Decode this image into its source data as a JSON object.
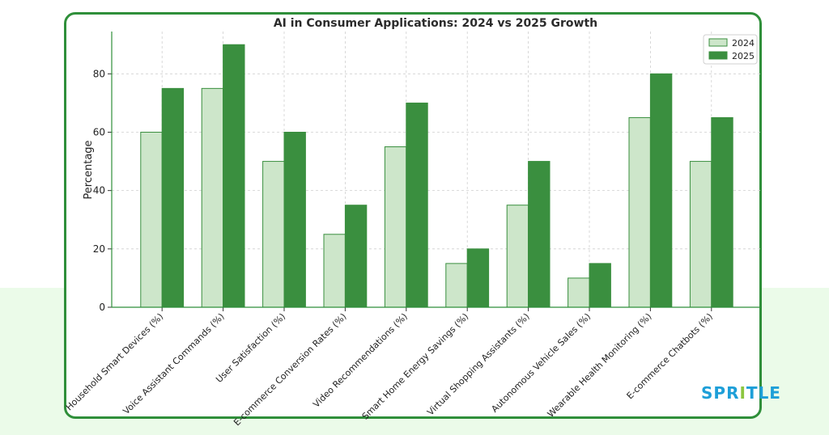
{
  "chart_data": {
    "type": "bar",
    "title": "AI in Consumer Applications: 2024 vs 2025 Growth",
    "xlabel": "",
    "ylabel": "Percentage",
    "ylim": [
      0,
      94.5
    ],
    "yticks": [
      0,
      20,
      40,
      60,
      80
    ],
    "grid": true,
    "legend_position": "top-right",
    "categories": [
      "Household Smart Devices (%)",
      "Voice Assistant Commands (%)",
      "User Satisfaction (%)",
      "E-commerce Conversion Rates (%)",
      "Video Recommendations (%)",
      "Smart Home Energy Savings (%)",
      "Virtual Shopping Assistants (%)",
      "Autonomous Vehicle Sales (%)",
      "Wearable Health Monitoring (%)",
      "E-commerce Chatbots (%)"
    ],
    "series": [
      {
        "name": "2024",
        "color": "#cde6ca",
        "values": [
          60,
          75,
          50,
          25,
          55,
          15,
          35,
          10,
          65,
          50
        ]
      },
      {
        "name": "2025",
        "color": "#3a8f3f",
        "values": [
          75,
          90,
          60,
          35,
          70,
          20,
          50,
          15,
          80,
          65
        ]
      }
    ]
  },
  "colors": {
    "frame": "#2f8f3a",
    "background_band": "#ebfbe9",
    "bar_edge": "#3a8f3f"
  },
  "logo": {
    "part1": "SPR",
    "part2": "I",
    "part3": "TLE"
  }
}
